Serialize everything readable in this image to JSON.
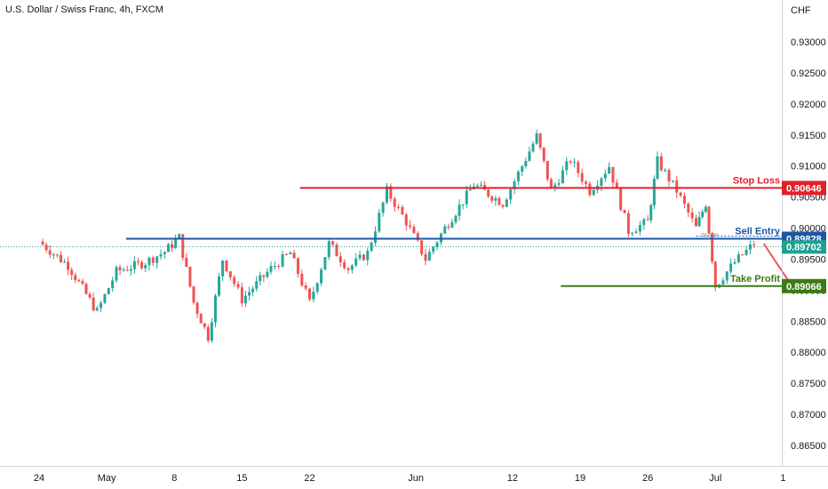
{
  "chart_data": {
    "type": "candlestick",
    "title": "U.S. Dollar / Swiss Franc, 4h, FXCM",
    "currency_label": "CHF",
    "grid": false,
    "y_ticks": [
      "0.93000",
      "0.92500",
      "0.92000",
      "0.91500",
      "0.91000",
      "0.90500",
      "0.90000",
      "0.89500",
      "0.89000",
      "0.88500",
      "0.88000",
      "0.87500",
      "0.87000",
      "0.86500"
    ],
    "x_ticks": [
      "24",
      "May",
      "8",
      "15",
      "22",
      "Jun",
      "12",
      "19",
      "26",
      "Jul",
      "1"
    ],
    "y_range": [
      0.8615,
      0.9355
    ],
    "up_color": "#26a69a",
    "down_color": "#ef5350",
    "price_path_points": [
      {
        "day": 0,
        "price": 0.8978
      },
      {
        "day": 3,
        "price": 0.894
      },
      {
        "day": 6,
        "price": 0.8865
      },
      {
        "day": 8,
        "price": 0.893
      },
      {
        "day": 11,
        "price": 0.8945
      },
      {
        "day": 13,
        "price": 0.8962
      },
      {
        "day": 14.5,
        "price": 0.8985
      },
      {
        "day": 16,
        "price": 0.888
      },
      {
        "day": 17.5,
        "price": 0.8825
      },
      {
        "day": 19,
        "price": 0.895
      },
      {
        "day": 21,
        "price": 0.8885
      },
      {
        "day": 24,
        "price": 0.8935
      },
      {
        "day": 26,
        "price": 0.896
      },
      {
        "day": 28,
        "price": 0.888
      },
      {
        "day": 30,
        "price": 0.8975
      },
      {
        "day": 32,
        "price": 0.8935
      },
      {
        "day": 34,
        "price": 0.896
      },
      {
        "day": 36,
        "price": 0.906
      },
      {
        "day": 38,
        "price": 0.901
      },
      {
        "day": 40,
        "price": 0.895
      },
      {
        "day": 42,
        "price": 0.9
      },
      {
        "day": 45,
        "price": 0.907
      },
      {
        "day": 48,
        "price": 0.904
      },
      {
        "day": 50,
        "price": 0.91
      },
      {
        "day": 51.5,
        "price": 0.9148
      },
      {
        "day": 53,
        "price": 0.906
      },
      {
        "day": 55,
        "price": 0.911
      },
      {
        "day": 57,
        "price": 0.906
      },
      {
        "day": 59,
        "price": 0.91
      },
      {
        "day": 61,
        "price": 0.8995
      },
      {
        "day": 63,
        "price": 0.901
      },
      {
        "day": 64,
        "price": 0.9108
      },
      {
        "day": 66,
        "price": 0.906
      },
      {
        "day": 68,
        "price": 0.9
      },
      {
        "day": 69,
        "price": 0.904
      },
      {
        "day": 70,
        "price": 0.8907
      },
      {
        "day": 72,
        "price": 0.8945
      },
      {
        "day": 74,
        "price": 0.8975
      }
    ],
    "levels": [
      {
        "name": "Stop Loss",
        "price": 0.90646,
        "value_label": "0.90646",
        "color": "#e0212b"
      },
      {
        "name": "Sell Entry",
        "price": 0.89828,
        "value_label": "0.89828",
        "color": "#1c57a8"
      },
      {
        "name": "Take Profit",
        "price": 0.89066,
        "value_label": "0.89066",
        "color": "#3d7a16"
      }
    ],
    "current_price": {
      "value_label": "0.89702",
      "price": 0.89702,
      "color": "#20a090"
    },
    "fib_label": "78.60%",
    "projection_arrow": {
      "from_day": 75,
      "from_price": 0.8975,
      "to_day": 78,
      "to_price": 0.8905,
      "color": "#ef5350"
    }
  }
}
